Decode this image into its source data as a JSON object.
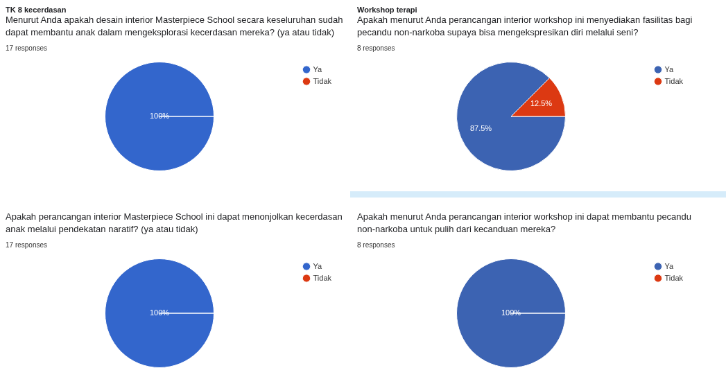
{
  "chart_data": [
    {
      "type": "pie",
      "title": "TK 8 kecerdasan",
      "subtitle": "Menurut Anda apakah desain interior Masterpiece School secara keseluruhan sudah dapat membantu anak dalam mengeksplorasi kecerdasan mereka? (ya atau tidak)",
      "annotations": [
        "17 responses"
      ],
      "categories": [
        "Ya",
        "Tidak"
      ],
      "values": [
        100,
        0
      ],
      "value_labels": [
        "100%",
        null
      ],
      "colors": [
        "#3366cc",
        "#dc3912"
      ],
      "legend": "right"
    },
    {
      "type": "pie",
      "title": "Workshop terapi",
      "subtitle": "Apakah menurut Anda perancangan interior workshop ini menyediakan fasilitas bagi pecandu non-narkoba supaya bisa mengekspresikan diri melalui seni?",
      "annotations": [
        "8 responses"
      ],
      "categories": [
        "Ya",
        "Tidak"
      ],
      "values": [
        87.5,
        12.5
      ],
      "value_labels": [
        "87.5%",
        "12.5%"
      ],
      "colors": [
        "#3c63b2",
        "#dc3912"
      ],
      "legend": "right"
    },
    {
      "type": "pie",
      "subtitle": "Apakah perancangan interior Masterpiece School ini dapat menonjolkan kecerdasan anak melalui pendekatan naratif? (ya atau tidak)",
      "annotations": [
        "17 responses"
      ],
      "categories": [
        "Ya",
        "Tidak"
      ],
      "values": [
        100,
        0
      ],
      "value_labels": [
        "100%",
        null
      ],
      "colors": [
        "#3366cc",
        "#dc3912"
      ],
      "legend": "right"
    },
    {
      "type": "pie",
      "subtitle": "Apakah menurut Anda perancangan interior workshop ini dapat membantu pecandu non-narkoba untuk pulih dari kecanduan mereka?",
      "annotations": [
        "8 responses"
      ],
      "categories": [
        "Ya",
        "Tidak"
      ],
      "values": [
        100,
        0
      ],
      "value_labels": [
        "100%",
        null
      ],
      "colors": [
        "#3c63b2",
        "#dc3912"
      ],
      "legend": "right"
    }
  ]
}
